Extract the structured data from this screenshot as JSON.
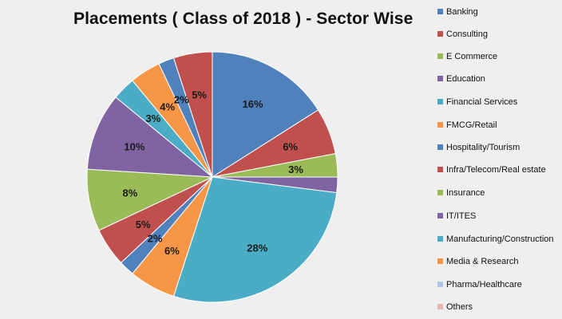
{
  "chart_data": {
    "type": "pie",
    "title": "Placements ( Class of 2018 ) - Sector Wise",
    "slices": [
      {
        "category": "Banking",
        "value": 16,
        "label": "16%",
        "color": "#4f81bd"
      },
      {
        "category": "Infra/Telecom/Real estate",
        "value": 6,
        "label": "6%",
        "color": "#c0504d"
      },
      {
        "category": "Insurance",
        "value": 3,
        "label": "3%",
        "color": "#9bbb59"
      },
      {
        "category": "IT/ITES",
        "value": 2,
        "label": "",
        "color": "#8064a2"
      },
      {
        "category": "Manufacturing/Construction",
        "value": 28,
        "label": "28%",
        "color": "#4bacc6"
      },
      {
        "category": "Media & Research",
        "value": 6,
        "label": "6%",
        "color": "#f79646"
      },
      {
        "category": "Hospitality/Tourism",
        "value": 2,
        "label": "2%",
        "color": "#4f81bd"
      },
      {
        "category": "Consulting",
        "value": 5,
        "label": "5%",
        "color": "#c0504d"
      },
      {
        "category": "E Commerce",
        "value": 8,
        "label": "8%",
        "color": "#9bbb59"
      },
      {
        "category": "Education",
        "value": 10,
        "label": "10%",
        "color": "#8064a2"
      },
      {
        "category": "Financial Services",
        "value": 3,
        "label": "3%",
        "color": "#4bacc6"
      },
      {
        "category": "FMCG/Retail",
        "value": 4,
        "label": "4%",
        "color": "#f79646"
      },
      {
        "category": "Hospitality/Tourism",
        "value": 2,
        "label": "2%",
        "color": "#4f81bd"
      },
      {
        "category": "Infra/Telecom/Real estate",
        "value": 5,
        "label": "5%",
        "color": "#c0504d"
      }
    ],
    "legend_position": "right",
    "legend": [
      {
        "label": "Banking",
        "color": "#4f81bd"
      },
      {
        "label": "Consulting",
        "color": "#c0504d"
      },
      {
        "label": "E Commerce",
        "color": "#9bbb59"
      },
      {
        "label": "Education",
        "color": "#8064a2"
      },
      {
        "label": "Financial Services",
        "color": "#4bacc6"
      },
      {
        "label": "FMCG/Retail",
        "color": "#f79646"
      },
      {
        "label": "Hospitality/Tourism",
        "color": "#4f81bd"
      },
      {
        "label": "Infra/Telecom/Real estate",
        "color": "#c0504d"
      },
      {
        "label": "Insurance",
        "color": "#9bbb59"
      },
      {
        "label": "IT/ITES",
        "color": "#8064a2"
      },
      {
        "label": "Manufacturing/Construction",
        "color": "#4bacc6"
      },
      {
        "label": "Media & Research",
        "color": "#f79646"
      },
      {
        "label": "Pharma/Healthcare",
        "color": "#b3c6e7"
      },
      {
        "label": "Others",
        "color": "#e6b9b8"
      }
    ]
  }
}
